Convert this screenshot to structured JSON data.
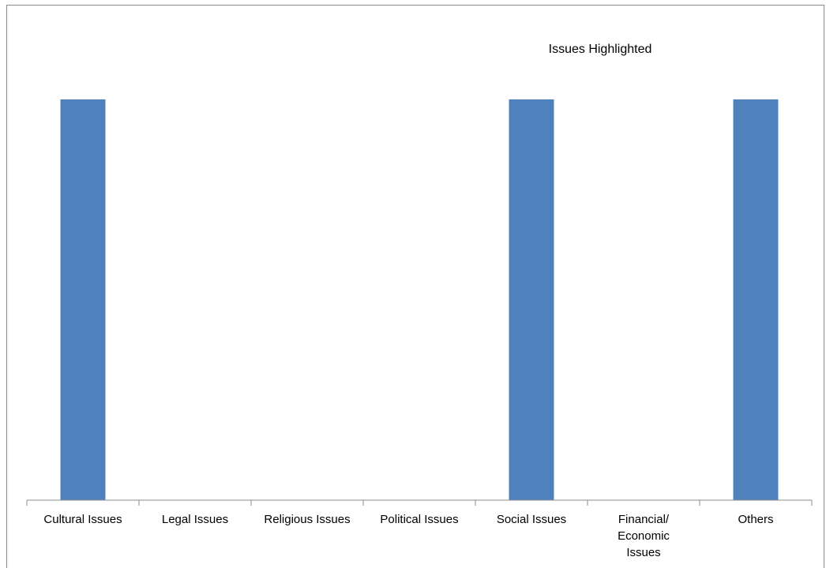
{
  "chart_data": {
    "type": "bar",
    "title": "Issues Highlighted",
    "categories": [
      [
        "Cultural Issues"
      ],
      [
        "Legal Issues"
      ],
      [
        "Religious Issues"
      ],
      [
        "Political Issues"
      ],
      [
        "Social Issues"
      ],
      [
        "Financial/",
        "Economic",
        "Issues"
      ],
      [
        "Others"
      ]
    ],
    "values": [
      1,
      0,
      0,
      0,
      1,
      0,
      1
    ],
    "ylim": [
      0,
      1
    ],
    "xlabel": "",
    "ylabel": "",
    "grid": false,
    "legend": "none",
    "colors": {
      "bar": "#4f81bd",
      "axis": "#8c8c8c"
    }
  }
}
